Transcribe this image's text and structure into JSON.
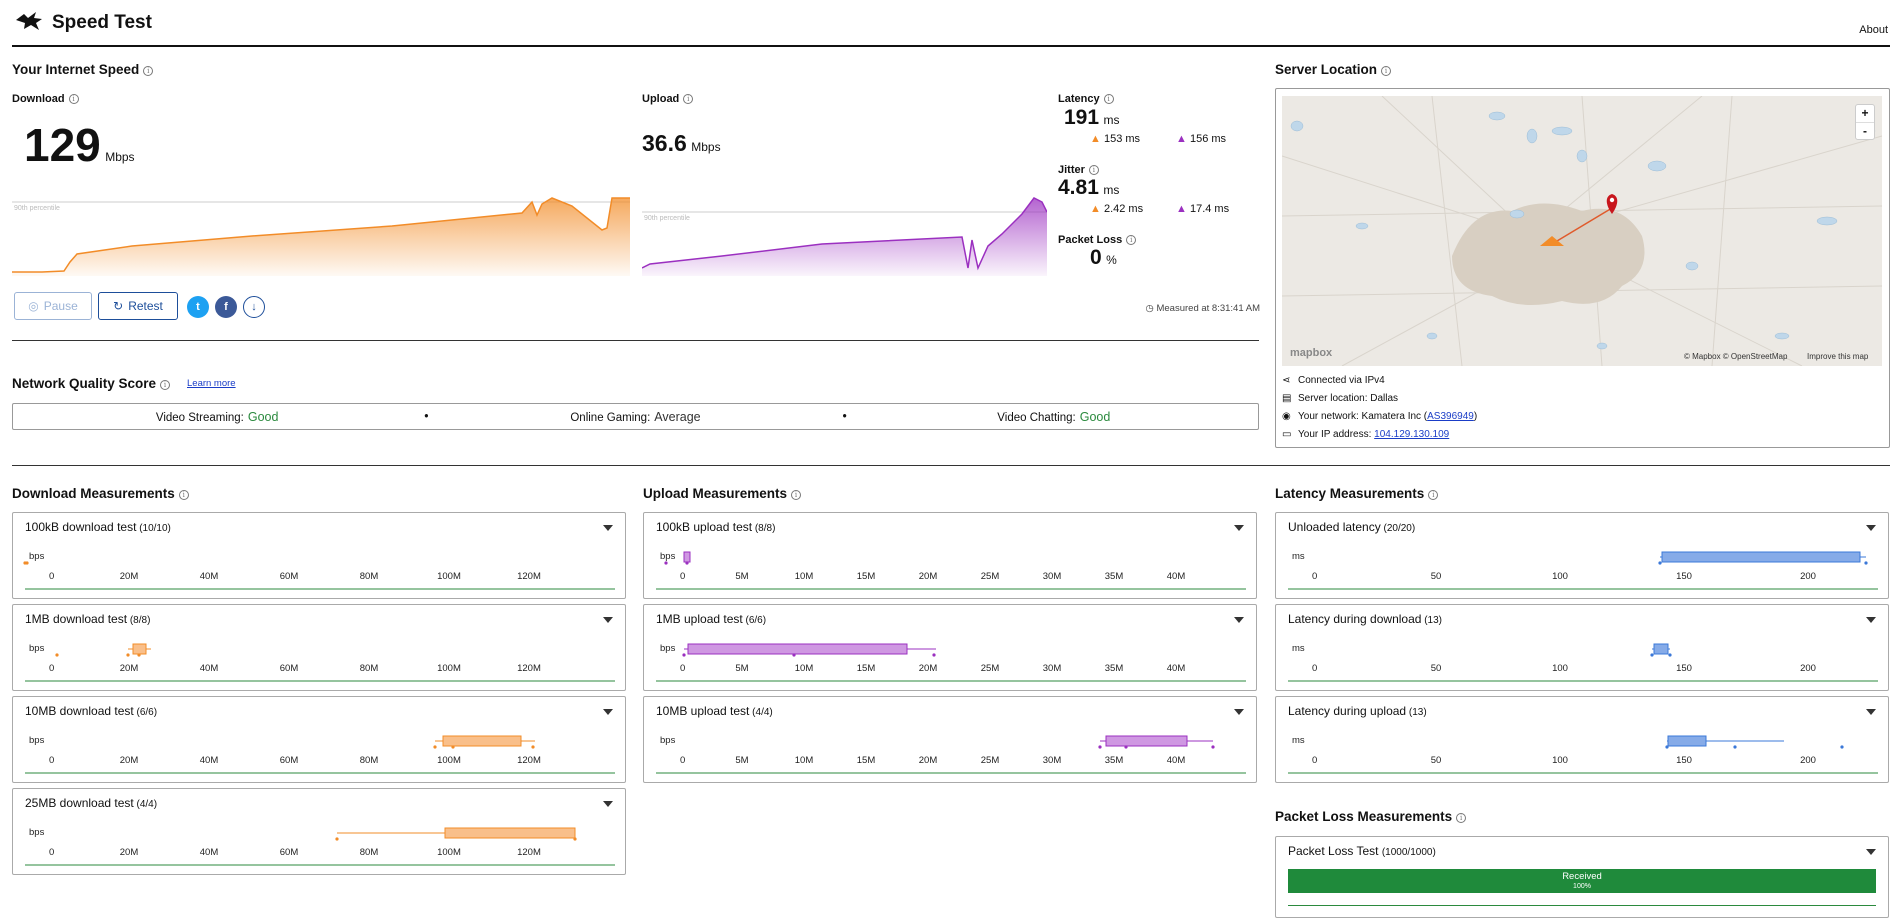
{
  "header": {
    "title": "Speed Test",
    "about": "About"
  },
  "speed": {
    "title": "Your Internet Speed",
    "download": {
      "label": "Download",
      "value": "129",
      "unit": "Mbps",
      "percentile": "90th percentile"
    },
    "upload": {
      "label": "Upload",
      "value": "36.6",
      "unit": "Mbps",
      "percentile": "90th percentile"
    },
    "latency": {
      "label": "Latency",
      "value": "191",
      "unit": "ms",
      "down": "153 ms",
      "up": "156 ms"
    },
    "jitter": {
      "label": "Jitter",
      "value": "4.81",
      "unit": "ms",
      "down": "2.42 ms",
      "up": "17.4 ms"
    },
    "packet_loss": {
      "label": "Packet Loss",
      "value": "0",
      "unit": "%"
    },
    "buttons": {
      "pause": "Pause",
      "retest": "Retest"
    },
    "measured_at": "Measured at 8:31:41 AM"
  },
  "server": {
    "title": "Server Location",
    "zoom_in": "+",
    "zoom_out": "-",
    "map_brand": "mapbox",
    "map_credits": "© Mapbox © OpenStreetMap",
    "map_improve": "Improve this map",
    "connected": "Connected via IPv4",
    "location": "Server location: Dallas",
    "network_prefix": "Your network: Kamatera Inc (",
    "network_link": "AS396949",
    "network_suffix": ")",
    "ip_prefix": "Your IP address: ",
    "ip_link": "104.129.130.109"
  },
  "nqs": {
    "title": "Network Quality Score",
    "learn_more": "Learn more",
    "items": [
      {
        "label": "Video Streaming:",
        "value": "Good"
      },
      {
        "label": "Online Gaming:",
        "value": "Average"
      },
      {
        "label": "Video Chatting:",
        "value": "Good"
      }
    ]
  },
  "download_meas": {
    "title": "Download Measurements",
    "unit": "bps",
    "ticks": [
      "0",
      "20M",
      "40M",
      "60M",
      "80M",
      "100M",
      "120M"
    ],
    "tests": [
      {
        "name": "100kB download test",
        "count": "(10/10)"
      },
      {
        "name": "1MB download test",
        "count": "(8/8)"
      },
      {
        "name": "10MB download test",
        "count": "(6/6)"
      },
      {
        "name": "25MB download test",
        "count": "(4/4)"
      }
    ]
  },
  "upload_meas": {
    "title": "Upload Measurements",
    "unit": "bps",
    "ticks": [
      "0",
      "5M",
      "10M",
      "15M",
      "20M",
      "25M",
      "30M",
      "35M",
      "40M"
    ],
    "tests": [
      {
        "name": "100kB upload test",
        "count": "(8/8)"
      },
      {
        "name": "1MB upload test",
        "count": "(6/6)"
      },
      {
        "name": "10MB upload test",
        "count": "(4/4)"
      }
    ]
  },
  "latency_meas": {
    "title": "Latency Measurements",
    "unit": "ms",
    "ticks": [
      "0",
      "50",
      "100",
      "150",
      "200"
    ],
    "tests": [
      {
        "name": "Unloaded latency",
        "count": "(20/20)"
      },
      {
        "name": "Latency during download",
        "count": "(13)"
      },
      {
        "name": "Latency during upload",
        "count": "(13)"
      }
    ]
  },
  "packet_meas": {
    "title": "Packet Loss Measurements",
    "test": {
      "name": "Packet Loss Test",
      "count": "(1000/1000)"
    },
    "received_label": "Received",
    "received_pct": "100%"
  },
  "colors": {
    "download": "#f28c28",
    "upload": "#9b30c0",
    "latency": "#3b78d8",
    "good": "#2b8a3e",
    "received": "#1f8a3b"
  }
}
